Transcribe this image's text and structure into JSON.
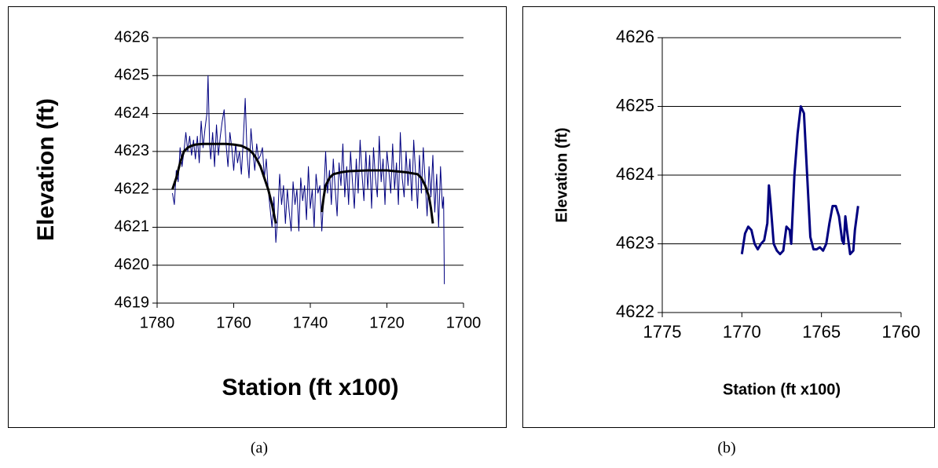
{
  "chart_data": [
    {
      "type": "line",
      "x_label": "Station (ft x100)",
      "y_label": "Elevation (ft)",
      "xlim": [
        1780,
        1700
      ],
      "xticks": [
        1780,
        1760,
        1740,
        1720,
        1700
      ],
      "ylim": [
        4619,
        4626
      ],
      "yticks": [
        4619,
        4620,
        4621,
        4622,
        4623,
        4624,
        4625,
        4626
      ],
      "grid": true,
      "series": [
        {
          "color": "#000080",
          "width": 1,
          "x": [
            1776,
            1775.5,
            1775,
            1774.5,
            1774,
            1773.5,
            1773,
            1772.5,
            1772,
            1771.5,
            1771,
            1770.5,
            1770,
            1769.5,
            1769,
            1768.5,
            1768,
            1767.5,
            1767,
            1766.7,
            1766.3,
            1766,
            1765.5,
            1765,
            1764.5,
            1764,
            1763.5,
            1763,
            1762.5,
            1762,
            1761.5,
            1761,
            1760.5,
            1760,
            1759.5,
            1759,
            1758.5,
            1758,
            1757.5,
            1757,
            1756.5,
            1756,
            1755.5,
            1755,
            1754.5,
            1754,
            1753.5,
            1753,
            1752.5,
            1752,
            1751.5,
            1751,
            1750.5,
            1750,
            1749.5,
            1749,
            1748.5,
            1748,
            1747.5,
            1747,
            1746.5,
            1746,
            1745.5,
            1745,
            1744.5,
            1744,
            1743.5,
            1743,
            1742.5,
            1742,
            1741.5,
            1741,
            1740.5,
            1740,
            1739.5,
            1739,
            1738.5,
            1738,
            1737.5,
            1737,
            1736.5,
            1736,
            1735.5,
            1735,
            1734.5,
            1734,
            1733.5,
            1733,
            1732.5,
            1732,
            1731.5,
            1731,
            1730.5,
            1730,
            1729.5,
            1729,
            1728.5,
            1728,
            1727.5,
            1727,
            1726.5,
            1726,
            1725.5,
            1725,
            1724.5,
            1724,
            1723.5,
            1723,
            1722.5,
            1722,
            1721.5,
            1721,
            1720.5,
            1720,
            1719.5,
            1719,
            1718.5,
            1718,
            1717.5,
            1717,
            1716.5,
            1716,
            1715.5,
            1715,
            1714.5,
            1714,
            1713.5,
            1713,
            1712.5,
            1712,
            1711.5,
            1711,
            1710.5,
            1710,
            1709.5,
            1709,
            1708.5,
            1708,
            1707.5,
            1707,
            1706.5,
            1706,
            1705.5,
            1705.2,
            1705
          ],
          "values": [
            4621.9,
            4621.6,
            4622.5,
            4622.2,
            4623.1,
            4622.6,
            4623.0,
            4623.5,
            4623.0,
            4623.4,
            4622.9,
            4623.3,
            4622.8,
            4623.4,
            4622.7,
            4623.8,
            4623.1,
            4623.6,
            4624.0,
            4625.0,
            4623.2,
            4622.8,
            4623.5,
            4622.6,
            4623.7,
            4622.9,
            4623.4,
            4623.8,
            4624.1,
            4623.2,
            4622.6,
            4623.5,
            4623.1,
            4622.5,
            4623.2,
            4622.7,
            4623.0,
            4622.4,
            4623.3,
            4624.4,
            4622.9,
            4622.3,
            4623.6,
            4623.0,
            4622.5,
            4623.2,
            4622.8,
            4622.9,
            4623.1,
            4622.3,
            4622.8,
            4622.0,
            4621.5,
            4621.0,
            4621.8,
            4620.6,
            4621.3,
            4622.4,
            4621.6,
            4622.1,
            4621.1,
            4622.0,
            4621.4,
            4620.9,
            4622.2,
            4621.6,
            4622.0,
            4620.9,
            4622.3,
            4621.7,
            4622.1,
            4621.2,
            4622.6,
            4621.5,
            4622.0,
            4621.0,
            4622.4,
            4621.9,
            4622.1,
            4620.9,
            4621.8,
            4623.0,
            4621.9,
            4622.5,
            4621.6,
            4622.8,
            4622.0,
            4621.3,
            4622.7,
            4622.1,
            4623.2,
            4621.8,
            4622.6,
            4621.6,
            4623.0,
            4622.2,
            4621.5,
            4622.8,
            4621.9,
            4623.3,
            4622.4,
            4621.7,
            4623.0,
            4622.0,
            4622.9,
            4621.5,
            4623.1,
            4622.3,
            4621.8,
            4623.4,
            4622.2,
            4622.8,
            4621.6,
            4623.0,
            4622.5,
            4621.9,
            4623.2,
            4622.0,
            4622.7,
            4621.6,
            4623.5,
            4622.3,
            4621.8,
            4623.0,
            4622.1,
            4622.8,
            4621.7,
            4623.3,
            4622.4,
            4621.5,
            4622.9,
            4621.9,
            4623.1,
            4622.2,
            4621.3,
            4622.6,
            4621.8,
            4622.9,
            4621.4,
            4622.4,
            4621.0,
            4622.6,
            4621.5,
            4621.8,
            4619.5
          ]
        },
        {
          "color": "#000000",
          "width": 3,
          "x": [
            1776,
            1775,
            1774,
            1773,
            1772,
            1771,
            1770,
            1768,
            1765,
            1762,
            1760,
            1758,
            1757,
            1756,
            1755,
            1754,
            1753,
            1752,
            1751,
            1750,
            1749.5,
            1749
          ],
          "values": [
            4622.0,
            4622.3,
            4622.7,
            4623.0,
            4623.1,
            4623.15,
            4623.18,
            4623.2,
            4623.2,
            4623.2,
            4623.18,
            4623.15,
            4623.1,
            4623.05,
            4622.95,
            4622.8,
            4622.6,
            4622.3,
            4622.0,
            4621.6,
            4621.35,
            4621.1
          ]
        },
        {
          "color": "#000000",
          "width": 3,
          "x": [
            1737,
            1736.5,
            1736,
            1735,
            1734,
            1732,
            1730,
            1725,
            1720,
            1715,
            1712,
            1711,
            1710,
            1709,
            1708.5,
            1708
          ],
          "values": [
            4621.4,
            4621.8,
            4622.1,
            4622.3,
            4622.4,
            4622.45,
            4622.48,
            4622.5,
            4622.5,
            4622.45,
            4622.4,
            4622.3,
            4622.1,
            4621.8,
            4621.5,
            4621.1
          ]
        }
      ]
    },
    {
      "type": "line",
      "x_label": "Station (ft x100)",
      "y_label": "Elevation (ft)",
      "xlim": [
        1775,
        1760
      ],
      "xticks": [
        1775,
        1770,
        1765,
        1760
      ],
      "ylim": [
        4622,
        4626
      ],
      "yticks": [
        4622,
        4623,
        4624,
        4625,
        4626
      ],
      "grid": true,
      "series": [
        {
          "color": "#000080",
          "width": 3,
          "x": [
            1770,
            1769.8,
            1769.6,
            1769.4,
            1769.2,
            1769,
            1768.8,
            1768.6,
            1768.4,
            1768.3,
            1768.2,
            1768,
            1767.8,
            1767.6,
            1767.4,
            1767.2,
            1767,
            1766.9,
            1766.7,
            1766.5,
            1766.3,
            1766.1,
            1765.9,
            1765.7,
            1765.5,
            1765.3,
            1765.1,
            1764.9,
            1764.7,
            1764.5,
            1764.3,
            1764.1,
            1763.9,
            1763.7,
            1763.6,
            1763.5,
            1763.4,
            1763.2,
            1763,
            1762.9,
            1762.7
          ],
          "values": [
            4622.85,
            4623.15,
            4623.25,
            4623.2,
            4623.0,
            4622.92,
            4623.0,
            4623.05,
            4623.3,
            4623.85,
            4623.6,
            4623.0,
            4622.9,
            4622.85,
            4622.9,
            4623.25,
            4623.2,
            4623.0,
            4624.0,
            4624.6,
            4625.0,
            4624.9,
            4624.0,
            4623.1,
            4622.92,
            4622.92,
            4622.95,
            4622.9,
            4623.0,
            4623.3,
            4623.55,
            4623.55,
            4623.4,
            4623.05,
            4623.0,
            4623.4,
            4623.2,
            4622.85,
            4622.9,
            4623.2,
            4623.55
          ]
        }
      ]
    }
  ],
  "captions": [
    "(a)",
    "(b)"
  ]
}
